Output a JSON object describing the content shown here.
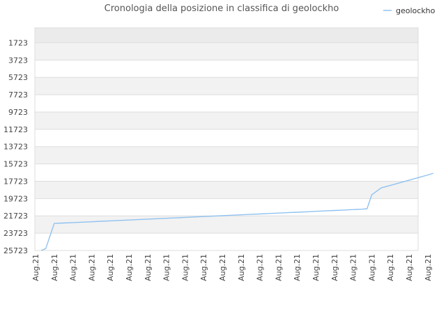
{
  "chart_data": {
    "type": "line",
    "title": "Cronologia della posizione in classifica di geolockho",
    "xlabel": "",
    "ylabel": "",
    "y_inverted": true,
    "ylim": [
      0,
      25723
    ],
    "y_ticks": [
      1723,
      3723,
      5723,
      7723,
      9723,
      11723,
      13723,
      15723,
      17723,
      19723,
      21723,
      23723,
      25723
    ],
    "x_ticks": [
      "Aug.21",
      "Aug.21",
      "Aug.21",
      "Aug.21",
      "Aug.21",
      "Aug.21",
      "Aug.21",
      "Aug.21",
      "Aug.21",
      "Aug.21",
      "Aug.21",
      "Aug.21",
      "Aug.21",
      "Aug.21",
      "Aug.21",
      "Aug.21",
      "Aug.21",
      "Aug.21",
      "Aug.21",
      "Aug.21",
      "Aug.21",
      "Aug.21"
    ],
    "grid": "horizontal bands",
    "legend_position": "top-right",
    "colors": {
      "line": "#90c2f0",
      "band": "#f2f2f2",
      "band_top": "#ebebeb",
      "grid": "#dddddd",
      "axis_text": "#444444"
    },
    "series": [
      {
        "name": "geolockho",
        "x": [
          0.3,
          0.55,
          1.0,
          1.5,
          2.0,
          2.5,
          3.0,
          3.5,
          4.0,
          4.5,
          5.0,
          5.5,
          6.0,
          6.5,
          7.0,
          7.5,
          8.0,
          8.5,
          9.0,
          9.5,
          10.0,
          10.5,
          11.0,
          11.5,
          12.0,
          12.5,
          13.0,
          13.5,
          14.0,
          14.5,
          15.0,
          15.5,
          16.0,
          16.5,
          17.0,
          17.5,
          17.75,
          18.0,
          18.5,
          19.0,
          19.5,
          20.0,
          20.5,
          21.0,
          21.3
        ],
        "y": [
          25723,
          25500,
          22600,
          22550,
          22500,
          22450,
          22400,
          22350,
          22300,
          22250,
          22200,
          22150,
          22100,
          22050,
          22000,
          21950,
          21900,
          21850,
          21800,
          21750,
          21700,
          21650,
          21600,
          21550,
          21500,
          21450,
          21400,
          21350,
          21300,
          21250,
          21200,
          21150,
          21100,
          21050,
          21000,
          20950,
          20900,
          19300,
          18500,
          18200,
          17900,
          17600,
          17300,
          17000,
          16800
        ]
      }
    ]
  }
}
